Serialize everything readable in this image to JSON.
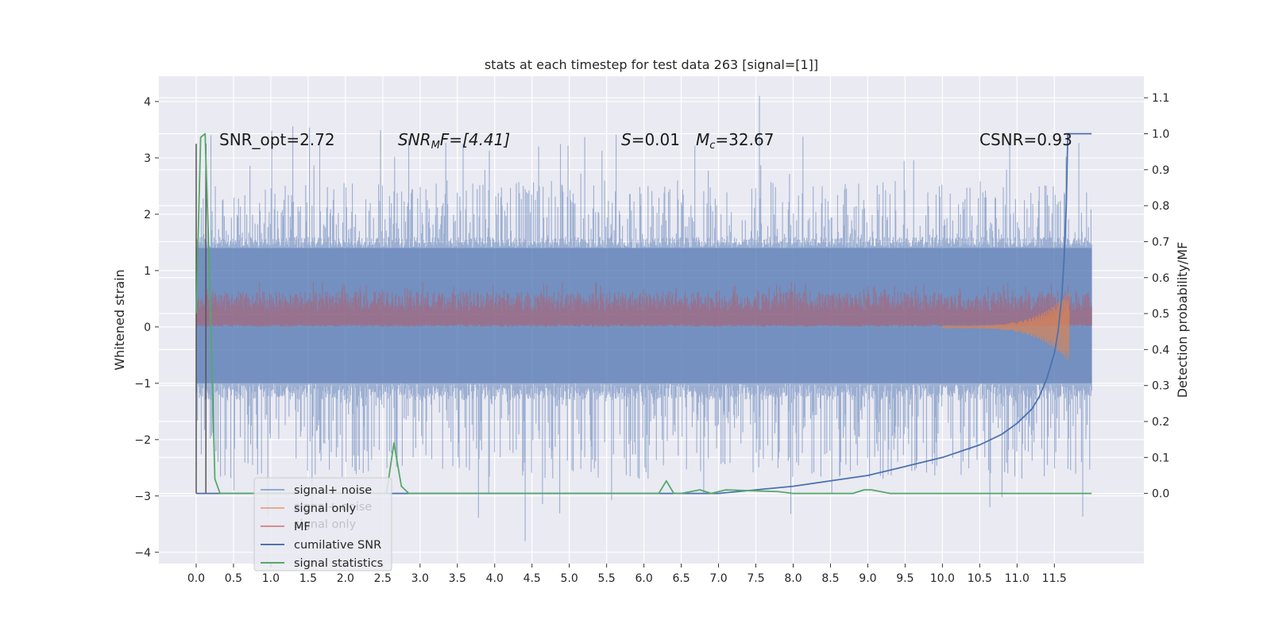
{
  "chart_data": {
    "type": "line",
    "title": "stats at each timestep for test data 263 [signal=[1]]",
    "xlabel": "",
    "ylabel": "Whitened strain",
    "y2label": "Detection probability/MF",
    "xlim": [
      -0.5,
      12.7
    ],
    "ylim": [
      -4.2,
      4.45
    ],
    "y2lim": [
      -0.195,
      1.16
    ],
    "x_ticks": [
      "0.0",
      "0.5",
      "1.0",
      "1.5",
      "2.0",
      "2.5",
      "3.0",
      "3.5",
      "4.0",
      "4.5",
      "5.0",
      "5.5",
      "6.0",
      "6.5",
      "7.0",
      "7.5",
      "8.0",
      "8.5",
      "9.0",
      "9.5",
      "10.0",
      "10.5",
      "11.0",
      "11.5"
    ],
    "y_ticks": [
      "4",
      "3",
      "2",
      "1",
      "0",
      "−1",
      "−2",
      "−3",
      "−4"
    ],
    "y2_ticks": [
      "1.1",
      "1.0",
      "0.9",
      "0.8",
      "0.7",
      "0.6",
      "0.5",
      "0.4",
      "0.3",
      "0.2",
      "0.1",
      "0.0"
    ],
    "grid": true,
    "legend_position": "lower-left",
    "annotations": [
      {
        "text": "SNR_opt=2.72"
      },
      {
        "text": "SNR_MF=[4.41]"
      },
      {
        "text": "S=0.01"
      },
      {
        "text": "M_c=32.67"
      },
      {
        "text": "CSNR=0.93"
      }
    ],
    "series": [
      {
        "name": "signal+ noise",
        "axis": "left",
        "color": "#4c72b0",
        "description_values": {
          "x_range": [
            0.0,
            12.0
          ],
          "envelope_upper": 1.4,
          "envelope_lower": -1.0,
          "peak_max": 4.1,
          "peak_min": -3.8
        }
      },
      {
        "name": "signal only",
        "axis": "left",
        "color": "#dd8452",
        "description_values": {
          "x_range": [
            0.0,
            12.0
          ],
          "chirp_peak_time": 11.65,
          "chirp_min": -0.6,
          "chirp_max": 1.0
        }
      },
      {
        "name": "MF",
        "axis": "left",
        "color": "#c44e52",
        "description_values": {
          "x_range": [
            0.0,
            12.0
          ],
          "band_lower": 0.0,
          "band_upper": 0.7
        }
      },
      {
        "name": "cumilative SNR",
        "axis": "right",
        "color": "#4c72b0",
        "x": [
          0.0,
          7.0,
          8.0,
          9.0,
          9.5,
          10.0,
          10.5,
          10.8,
          11.0,
          11.2,
          11.3,
          11.4,
          11.5,
          11.55,
          11.6,
          11.63,
          11.66,
          11.68,
          12.0
        ],
        "values": [
          0.0,
          0.0,
          0.02,
          0.05,
          0.075,
          0.1,
          0.135,
          0.165,
          0.195,
          0.235,
          0.27,
          0.32,
          0.39,
          0.45,
          0.55,
          0.65,
          0.8,
          1.0,
          1.0
        ]
      },
      {
        "name": "signal statistics",
        "axis": "right",
        "color": "#55a868",
        "x": [
          0.0,
          0.06,
          0.12,
          0.18,
          0.25,
          0.32,
          2.4,
          2.55,
          2.65,
          2.75,
          2.85,
          3.0,
          6.2,
          6.3,
          6.4,
          6.5,
          6.75,
          6.9,
          7.1,
          7.8,
          8.0,
          8.2,
          8.8,
          8.95,
          9.05,
          9.3,
          12.0
        ],
        "values": [
          0.5,
          0.99,
          1.0,
          0.6,
          0.04,
          0.0,
          0.0,
          0.0,
          0.14,
          0.02,
          0.0,
          0.0,
          0.0,
          0.035,
          0.0,
          0.0,
          0.01,
          0.0,
          0.01,
          0.005,
          0.0,
          0.0,
          0.0,
          0.01,
          0.01,
          0.0,
          0.0
        ]
      }
    ],
    "vertical_markers": [
      {
        "x": 0.0,
        "color": "#555555"
      },
      {
        "x": 0.13,
        "color": "#555555"
      }
    ],
    "legend_entries": [
      "signal+ noise",
      "signal only",
      "MF",
      "cumilative SNR",
      "signal statistics"
    ],
    "ghost_legend_entries": [
      "signal+ noise",
      "signal only"
    ]
  }
}
